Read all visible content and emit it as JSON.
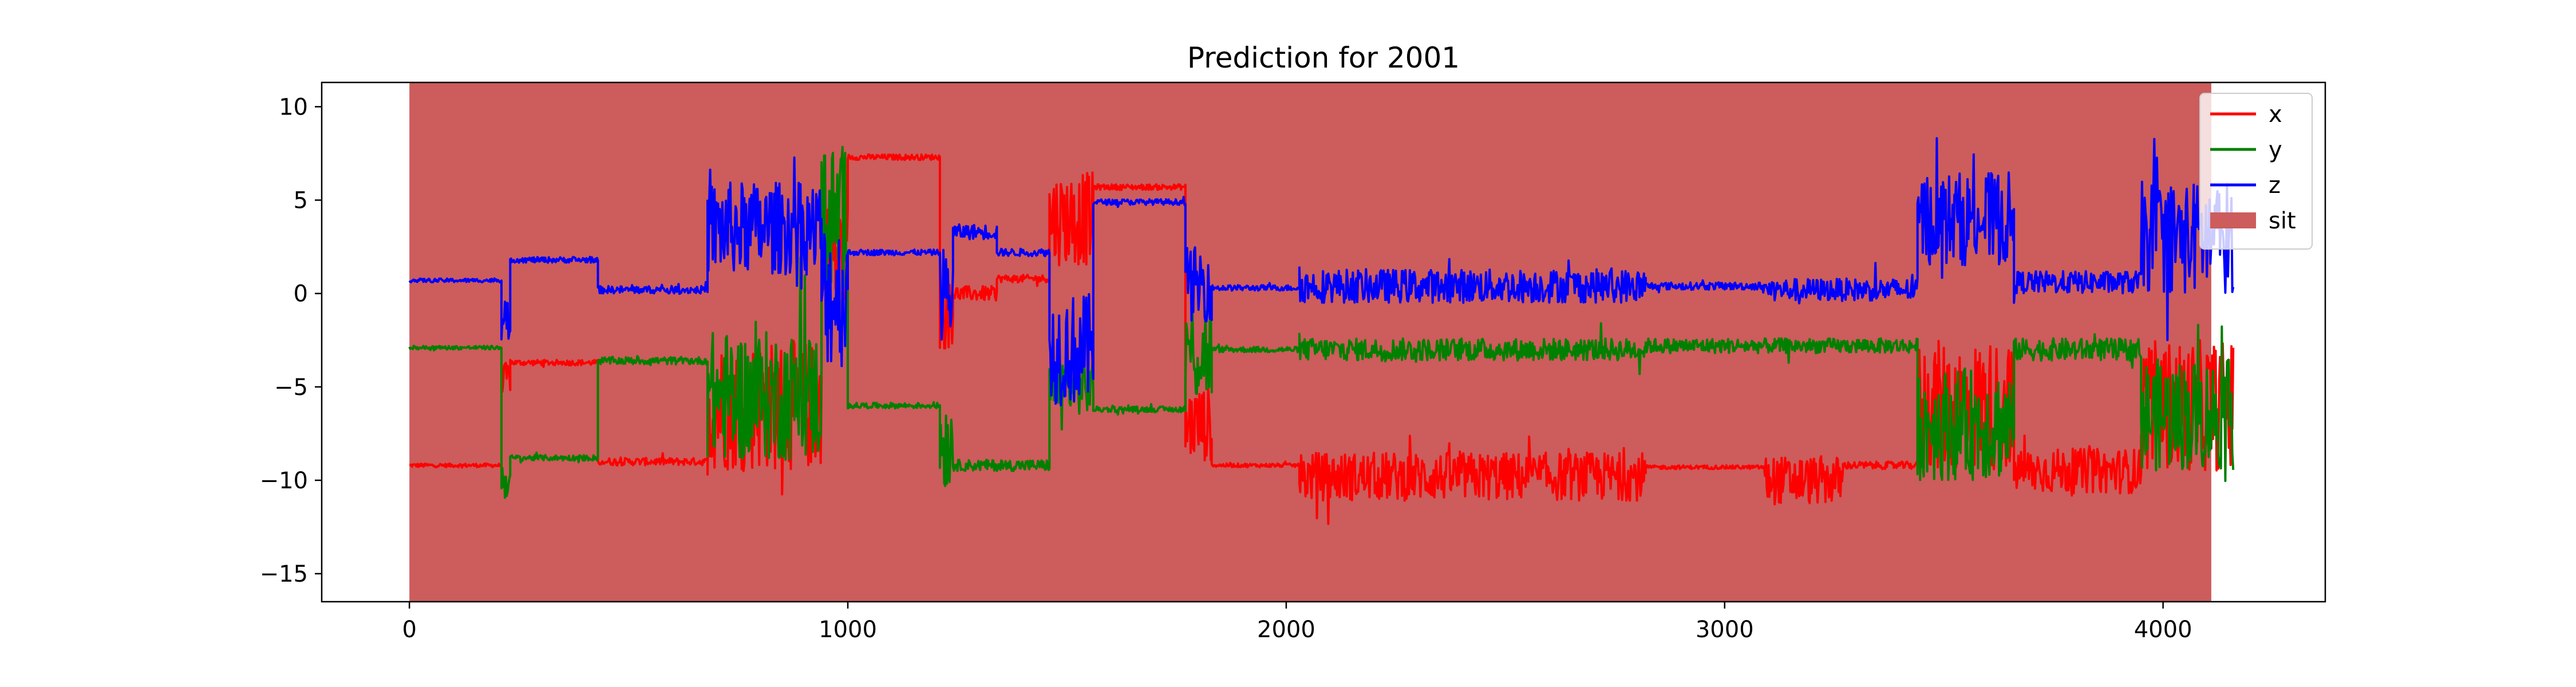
{
  "chart_data": {
    "type": "line",
    "title": "Prediction for 2001",
    "xlabel": "",
    "ylabel": "",
    "xlim": [
      -200,
      4370
    ],
    "ylim": [
      -16.5,
      11.3
    ],
    "xticks": [
      0,
      1000,
      2000,
      3000,
      4000
    ],
    "yticks": [
      -15,
      -10,
      -5,
      0,
      5,
      10
    ],
    "xtick_labels": [
      "0",
      "1000",
      "2000",
      "3000",
      "4000"
    ],
    "ytick_labels": [
      "−15",
      "−10",
      "−5",
      "0",
      "5",
      "10"
    ],
    "grid": false,
    "legend_position": "top-right",
    "shaded_regions": [
      {
        "label": "sit",
        "x_start": 0,
        "x_end": 4110,
        "color": "#cd5c5c"
      }
    ],
    "series": [
      {
        "name": "x",
        "color": "#ff0000",
        "segments": [
          {
            "x_start": 0,
            "x_end": 210,
            "y": -9.2,
            "noise": 0.1
          },
          {
            "x_start": 210,
            "x_end": 230,
            "y": -4.5,
            "noise": 0.8
          },
          {
            "x_start": 230,
            "x_end": 430,
            "y": -3.7,
            "noise": 0.15
          },
          {
            "x_start": 430,
            "x_end": 680,
            "y": -9.0,
            "noise": 0.2
          },
          {
            "x_start": 680,
            "x_end": 940,
            "y": -6.0,
            "noise": 3.5
          },
          {
            "x_start": 940,
            "x_end": 1000,
            "y": 2.0,
            "noise": 3.0
          },
          {
            "x_start": 1000,
            "x_end": 1210,
            "y": 7.3,
            "noise": 0.15
          },
          {
            "x_start": 1210,
            "x_end": 1240,
            "y": -1.0,
            "noise": 2.0
          },
          {
            "x_start": 1240,
            "x_end": 1340,
            "y": 0.0,
            "noise": 0.4
          },
          {
            "x_start": 1340,
            "x_end": 1460,
            "y": 0.8,
            "noise": 0.2
          },
          {
            "x_start": 1460,
            "x_end": 1560,
            "y": 4.0,
            "noise": 2.5
          },
          {
            "x_start": 1560,
            "x_end": 1770,
            "y": 5.7,
            "noise": 0.15
          },
          {
            "x_start": 1770,
            "x_end": 1830,
            "y": -7.0,
            "noise": 2.0
          },
          {
            "x_start": 1830,
            "x_end": 2030,
            "y": -9.2,
            "noise": 0.1
          },
          {
            "x_start": 2030,
            "x_end": 2820,
            "y": -9.8,
            "noise": 1.3
          },
          {
            "x_start": 2820,
            "x_end": 3090,
            "y": -9.3,
            "noise": 0.1
          },
          {
            "x_start": 3090,
            "x_end": 3270,
            "y": -10.0,
            "noise": 1.3
          },
          {
            "x_start": 3270,
            "x_end": 3440,
            "y": -9.2,
            "noise": 0.2
          },
          {
            "x_start": 3440,
            "x_end": 3660,
            "y": -6.0,
            "noise": 3.5
          },
          {
            "x_start": 3660,
            "x_end": 3950,
            "y": -9.5,
            "noise": 1.2
          },
          {
            "x_start": 3950,
            "x_end": 4160,
            "y": -6.0,
            "noise": 3.5
          }
        ]
      },
      {
        "name": "y",
        "color": "#008000",
        "segments": [
          {
            "x_start": 0,
            "x_end": 210,
            "y": -2.9,
            "noise": 0.1
          },
          {
            "x_start": 210,
            "x_end": 230,
            "y": -10.0,
            "noise": 1.0
          },
          {
            "x_start": 230,
            "x_end": 430,
            "y": -8.8,
            "noise": 0.15
          },
          {
            "x_start": 430,
            "x_end": 680,
            "y": -3.6,
            "noise": 0.2
          },
          {
            "x_start": 680,
            "x_end": 940,
            "y": -5.5,
            "noise": 3.5
          },
          {
            "x_start": 940,
            "x_end": 1000,
            "y": 4.0,
            "noise": 4.0
          },
          {
            "x_start": 1000,
            "x_end": 1210,
            "y": -6.0,
            "noise": 0.15
          },
          {
            "x_start": 1210,
            "x_end": 1240,
            "y": -8.0,
            "noise": 2.5
          },
          {
            "x_start": 1240,
            "x_end": 1460,
            "y": -9.2,
            "noise": 0.3
          },
          {
            "x_start": 1460,
            "x_end": 1560,
            "y": -5.0,
            "noise": 1.5
          },
          {
            "x_start": 1560,
            "x_end": 1770,
            "y": -6.2,
            "noise": 0.15
          },
          {
            "x_start": 1770,
            "x_end": 1830,
            "y": -3.0,
            "noise": 3.0
          },
          {
            "x_start": 1830,
            "x_end": 2030,
            "y": -3.0,
            "noise": 0.15
          },
          {
            "x_start": 2030,
            "x_end": 2820,
            "y": -3.0,
            "noise": 0.6
          },
          {
            "x_start": 2820,
            "x_end": 3440,
            "y": -2.8,
            "noise": 0.4
          },
          {
            "x_start": 3440,
            "x_end": 3660,
            "y": -7.0,
            "noise": 3.0
          },
          {
            "x_start": 3660,
            "x_end": 3950,
            "y": -3.0,
            "noise": 0.6
          },
          {
            "x_start": 3950,
            "x_end": 4160,
            "y": -6.5,
            "noise": 3.0
          }
        ]
      },
      {
        "name": "z",
        "color": "#0000ff",
        "segments": [
          {
            "x_start": 0,
            "x_end": 210,
            "y": 0.7,
            "noise": 0.1
          },
          {
            "x_start": 210,
            "x_end": 230,
            "y": -1.5,
            "noise": 1.0
          },
          {
            "x_start": 230,
            "x_end": 430,
            "y": 1.8,
            "noise": 0.15
          },
          {
            "x_start": 430,
            "x_end": 680,
            "y": 0.2,
            "noise": 0.2
          },
          {
            "x_start": 680,
            "x_end": 940,
            "y": 3.5,
            "noise": 2.5
          },
          {
            "x_start": 940,
            "x_end": 1000,
            "y": 0.0,
            "noise": 4.0
          },
          {
            "x_start": 1000,
            "x_end": 1210,
            "y": 2.2,
            "noise": 0.15
          },
          {
            "x_start": 1210,
            "x_end": 1240,
            "y": 0.0,
            "noise": 2.5
          },
          {
            "x_start": 1240,
            "x_end": 1340,
            "y": 3.3,
            "noise": 0.4
          },
          {
            "x_start": 1340,
            "x_end": 1460,
            "y": 2.2,
            "noise": 0.2
          },
          {
            "x_start": 1460,
            "x_end": 1560,
            "y": -3.0,
            "noise": 3.0
          },
          {
            "x_start": 1560,
            "x_end": 1770,
            "y": 4.9,
            "noise": 0.15
          },
          {
            "x_start": 1770,
            "x_end": 1830,
            "y": 0.5,
            "noise": 2.0
          },
          {
            "x_start": 1830,
            "x_end": 2030,
            "y": 0.3,
            "noise": 0.15
          },
          {
            "x_start": 2030,
            "x_end": 2820,
            "y": 0.4,
            "noise": 0.9
          },
          {
            "x_start": 2820,
            "x_end": 3090,
            "y": 0.4,
            "noise": 0.2
          },
          {
            "x_start": 3090,
            "x_end": 3440,
            "y": 0.2,
            "noise": 0.6
          },
          {
            "x_start": 3440,
            "x_end": 3660,
            "y": 4.0,
            "noise": 2.5
          },
          {
            "x_start": 3660,
            "x_end": 3950,
            "y": 0.6,
            "noise": 0.6
          },
          {
            "x_start": 3950,
            "x_end": 4160,
            "y": 3.0,
            "noise": 3.0
          }
        ]
      }
    ],
    "legend": [
      {
        "label": "x",
        "kind": "line",
        "color": "#ff0000"
      },
      {
        "label": "y",
        "kind": "line",
        "color": "#008000"
      },
      {
        "label": "z",
        "kind": "line",
        "color": "#0000ff"
      },
      {
        "label": "sit",
        "kind": "patch",
        "color": "#cd5c5c"
      }
    ]
  }
}
